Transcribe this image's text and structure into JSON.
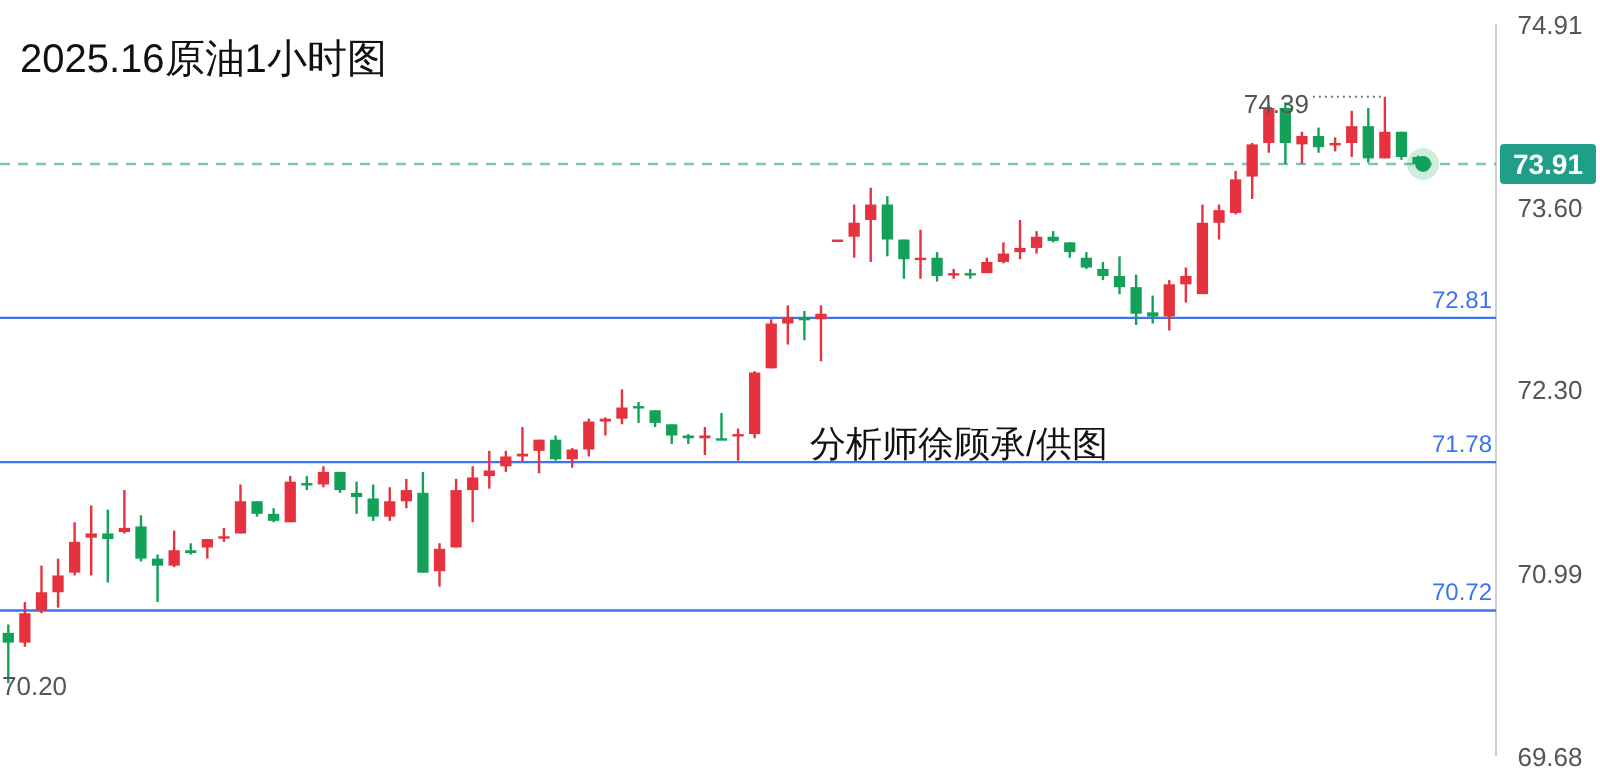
{
  "chart_data": {
    "type": "candlestick",
    "title": "2025.16原油1小时图",
    "categories": [
      null,
      null,
      null,
      null,
      null,
      null,
      null,
      null,
      null,
      null,
      null,
      null,
      null,
      null,
      null,
      null,
      null,
      null,
      null,
      null,
      null,
      null,
      null,
      null,
      null,
      null,
      null,
      null,
      null,
      null,
      null,
      null,
      null,
      null,
      null,
      null,
      null,
      null,
      null,
      null,
      null,
      null,
      null,
      null,
      null,
      null,
      null,
      null,
      null,
      null,
      null,
      null,
      null,
      null,
      null,
      null,
      null,
      null,
      null,
      null,
      null,
      null,
      null,
      null,
      null,
      null,
      null,
      null,
      null,
      null,
      null,
      null,
      null,
      null,
      null,
      null,
      null,
      null,
      null,
      null,
      null,
      null,
      null,
      null,
      null,
      null
    ],
    "ohlc": [
      [
        70.56,
        70.62,
        70.2,
        70.49
      ],
      [
        70.49,
        70.78,
        70.46,
        70.7
      ],
      [
        70.72,
        71.04,
        70.7,
        70.85
      ],
      [
        70.85,
        71.09,
        70.74,
        70.97
      ],
      [
        70.99,
        71.35,
        70.97,
        71.21
      ],
      [
        71.24,
        71.47,
        70.97,
        71.27
      ],
      [
        71.27,
        71.44,
        70.92,
        71.23
      ],
      [
        71.28,
        71.58,
        71.27,
        71.31
      ],
      [
        71.32,
        71.4,
        71.07,
        71.09
      ],
      [
        71.09,
        71.12,
        70.78,
        71.04
      ],
      [
        71.04,
        71.29,
        71.03,
        71.15
      ],
      [
        71.15,
        71.2,
        71.12,
        71.13
      ],
      [
        71.17,
        71.23,
        71.09,
        71.23
      ],
      [
        71.24,
        71.31,
        71.21,
        71.25
      ],
      [
        71.27,
        71.62,
        71.27,
        71.5
      ],
      [
        71.5,
        71.5,
        71.39,
        71.41
      ],
      [
        71.41,
        71.45,
        71.35,
        71.36
      ],
      [
        71.35,
        71.68,
        71.35,
        71.64
      ],
      [
        71.63,
        71.68,
        71.58,
        71.62
      ],
      [
        71.62,
        71.75,
        71.6,
        71.71
      ],
      [
        71.71,
        71.71,
        71.56,
        71.58
      ],
      [
        71.56,
        71.64,
        71.41,
        71.53
      ],
      [
        71.52,
        71.62,
        71.36,
        71.39
      ],
      [
        71.39,
        71.6,
        71.36,
        71.5
      ],
      [
        71.5,
        71.66,
        71.45,
        71.58
      ],
      [
        71.56,
        71.71,
        70.99,
        70.99
      ],
      [
        71.0,
        71.2,
        70.89,
        71.16
      ],
      [
        71.17,
        71.66,
        71.17,
        71.58
      ],
      [
        71.58,
        71.75,
        71.35,
        71.67
      ],
      [
        71.68,
        71.86,
        71.59,
        71.72
      ],
      [
        71.75,
        71.86,
        71.71,
        71.82
      ],
      [
        71.82,
        72.03,
        71.78,
        71.84
      ],
      [
        71.86,
        71.94,
        71.7,
        71.94
      ],
      [
        71.94,
        71.97,
        71.79,
        71.8
      ],
      [
        71.8,
        71.88,
        71.74,
        71.87
      ],
      [
        71.87,
        72.09,
        71.82,
        72.07
      ],
      [
        72.07,
        72.1,
        71.97,
        72.09
      ],
      [
        72.09,
        72.3,
        72.05,
        72.17
      ],
      [
        72.18,
        72.21,
        72.06,
        72.17
      ],
      [
        72.15,
        72.15,
        72.03,
        72.06
      ],
      [
        72.05,
        72.05,
        71.91,
        71.97
      ],
      [
        71.97,
        71.98,
        71.91,
        71.95
      ],
      [
        71.95,
        72.03,
        71.83,
        71.97
      ],
      [
        71.95,
        72.13,
        71.94,
        71.94
      ],
      [
        71.97,
        72.02,
        71.79,
        71.98
      ],
      [
        71.98,
        72.43,
        71.95,
        72.42
      ],
      [
        72.45,
        72.8,
        72.45,
        72.77
      ],
      [
        72.77,
        72.9,
        72.62,
        72.81
      ],
      [
        72.81,
        72.86,
        72.65,
        72.8
      ],
      [
        72.8,
        72.9,
        72.5,
        72.84
      ],
      [
        73.37,
        73.37,
        73.37,
        73.37
      ],
      [
        73.39,
        73.62,
        73.24,
        73.49
      ],
      [
        73.51,
        73.74,
        73.21,
        73.62
      ],
      [
        73.62,
        73.68,
        73.25,
        73.37
      ],
      [
        73.37,
        73.37,
        73.09,
        73.23
      ],
      [
        73.24,
        73.44,
        73.09,
        73.24
      ],
      [
        73.24,
        73.28,
        73.07,
        73.11
      ],
      [
        73.12,
        73.16,
        73.09,
        73.13
      ],
      [
        73.13,
        73.16,
        73.09,
        73.12
      ],
      [
        73.13,
        73.24,
        73.13,
        73.21
      ],
      [
        73.21,
        73.35,
        73.2,
        73.27
      ],
      [
        73.28,
        73.51,
        73.23,
        73.31
      ],
      [
        73.31,
        73.43,
        73.27,
        73.39
      ],
      [
        73.39,
        73.43,
        73.35,
        73.36
      ],
      [
        73.35,
        73.35,
        73.24,
        73.28
      ],
      [
        73.24,
        73.28,
        73.16,
        73.17
      ],
      [
        73.16,
        73.21,
        73.08,
        73.11
      ],
      [
        73.11,
        73.25,
        72.98,
        73.03
      ],
      [
        73.03,
        73.12,
        72.76,
        72.84
      ],
      [
        72.85,
        72.97,
        72.77,
        72.82
      ],
      [
        72.82,
        73.08,
        72.72,
        73.05
      ],
      [
        73.05,
        73.17,
        72.92,
        73.11
      ],
      [
        72.98,
        73.62,
        72.98,
        73.49
      ],
      [
        73.49,
        73.62,
        73.37,
        73.58
      ],
      [
        73.56,
        73.86,
        73.55,
        73.8
      ],
      [
        73.82,
        74.06,
        73.66,
        74.05
      ],
      [
        74.06,
        74.33,
        73.99,
        74.31
      ],
      [
        74.31,
        74.35,
        73.91,
        74.06
      ],
      [
        74.05,
        74.14,
        73.91,
        74.11
      ],
      [
        74.11,
        74.17,
        73.99,
        74.03
      ],
      [
        74.05,
        74.1,
        74.0,
        74.06
      ],
      [
        74.06,
        74.29,
        73.96,
        74.18
      ],
      [
        74.18,
        74.31,
        73.92,
        73.95
      ],
      [
        73.95,
        74.39,
        73.95,
        74.14
      ],
      [
        74.14,
        74.14,
        73.94,
        73.96
      ],
      [
        73.96,
        73.97,
        73.91,
        73.91
      ]
    ],
    "colors": [
      "#13a15a",
      "#e5323e",
      "#e5323e",
      "#e5323e",
      "#e5323e",
      "#e5323e",
      "#13a15a",
      "#e5323e",
      "#13a15a",
      "#13a15a",
      "#e5323e",
      "#13a15a",
      "#e5323e",
      "#e5323e",
      "#e5323e",
      "#13a15a",
      "#13a15a",
      "#e5323e",
      "#13a15a",
      "#e5323e",
      "#13a15a",
      "#13a15a",
      "#13a15a",
      "#e5323e",
      "#e5323e",
      "#13a15a",
      "#e5323e",
      "#e5323e",
      "#e5323e",
      "#e5323e",
      "#e5323e",
      "#e5323e",
      "#e5323e",
      "#13a15a",
      "#e5323e",
      "#e5323e",
      "#e5323e",
      "#e5323e",
      "#13a15a",
      "#13a15a",
      "#13a15a",
      "#13a15a",
      "#e5323e",
      "#13a15a",
      "#e5323e",
      "#e5323e",
      "#e5323e",
      "#e5323e",
      "#13a15a",
      "#e5323e",
      "#e5323e",
      "#e5323e",
      "#e5323e",
      "#13a15a",
      "#13a15a",
      "#e5323e",
      "#13a15a",
      "#e5323e",
      "#13a15a",
      "#e5323e",
      "#e5323e",
      "#e5323e",
      "#e5323e",
      "#13a15a",
      "#13a15a",
      "#13a15a",
      "#13a15a",
      "#13a15a",
      "#13a15a",
      "#13a15a",
      "#e5323e",
      "#e5323e",
      "#e5323e",
      "#e5323e",
      "#e5323e",
      "#e5323e",
      "#e5323e",
      "#13a15a",
      "#e5323e",
      "#13a15a",
      "#e5323e",
      "#e5323e",
      "#13a15a",
      "#e5323e",
      "#13a15a",
      "#13a15a"
    ],
    "ylim": [
      69.68,
      74.91
    ],
    "yticks": [
      74.91,
      {
        "value": 73.6,
        "label": "73.60"
      },
      {
        "value": 72.3,
        "label": "72.30"
      },
      70.99,
      69.68
    ],
    "tick_labels": "y",
    "ref_lines": [
      {
        "axis": "y",
        "value": 73.91,
        "label": "73.91",
        "color": "#1f9f88",
        "line_style": "dashed"
      },
      {
        "axis": "y",
        "value": 72.81,
        "label": "72.81",
        "color": "#3b73f0",
        "line_style": "solid"
      },
      {
        "axis": "y",
        "value": 71.78,
        "label": "71.78",
        "color": "#3b73f0",
        "line_style": "solid"
      },
      {
        "axis": "y",
        "value": 70.72,
        "label": "70.72",
        "color": "#3b73f0",
        "line_style": "solid"
      }
    ],
    "annotations": [
      "74.39",
      "70.20",
      "分析师徐顾承/供图"
    ]
  }
}
